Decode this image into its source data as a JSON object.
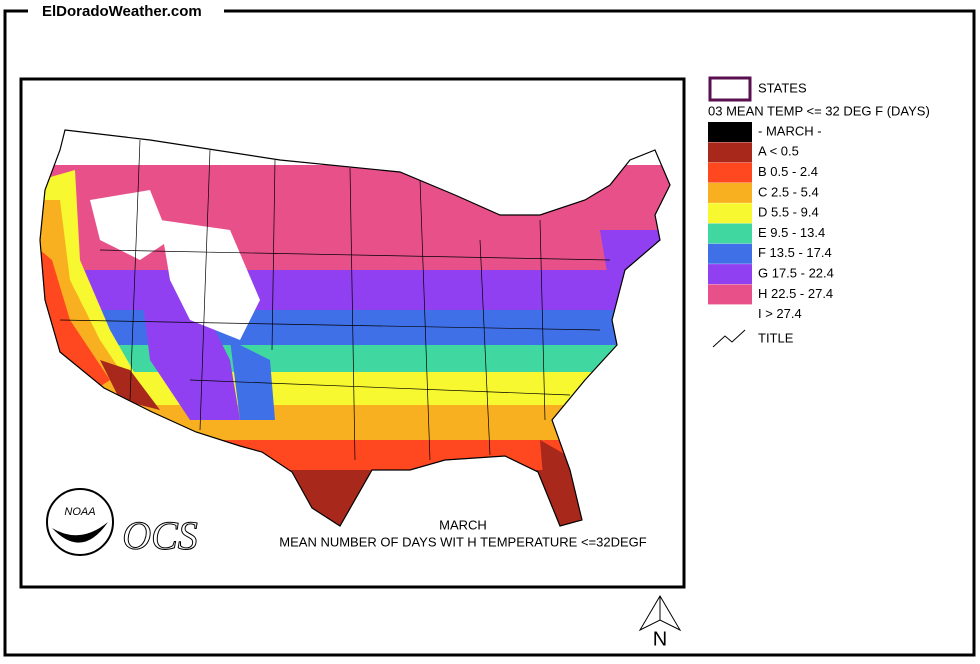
{
  "header": {
    "site": "ElDoradoWeather.com"
  },
  "legend": {
    "states": "STATES",
    "subtitle": "03 MEAN TEMP <= 32 DEG F (DAYS)",
    "items": [
      {
        "label": "- MARCH -",
        "color": "#000000"
      },
      {
        "label": "A < 0.5",
        "color": "#a8281c"
      },
      {
        "label": "B 0.5 - 2.4",
        "color": "#ff4820"
      },
      {
        "label": "C 2.5 - 5.4",
        "color": "#f8b020"
      },
      {
        "label": "D 5.5 - 9.4",
        "color": "#f8f830"
      },
      {
        "label": "E 9.5 - 13.4",
        "color": "#40d8a0"
      },
      {
        "label": "F 13.5 - 17.4",
        "color": "#4070e8"
      },
      {
        "label": "G 17.5 - 22.4",
        "color": "#9040f0"
      },
      {
        "label": "H 22.5 - 27.4",
        "color": "#e8508a"
      },
      {
        "label": "I > 27.4",
        "color": "#ffffff"
      }
    ],
    "title_marker": "TITLE"
  },
  "map": {
    "caption_title": "MARCH",
    "caption_text": "MEAN NUMBER OF DAYS WIT H TEMPERATURE <=32DEGF",
    "noaa": "NOAA",
    "ocs": "OCS",
    "north": "N"
  }
}
